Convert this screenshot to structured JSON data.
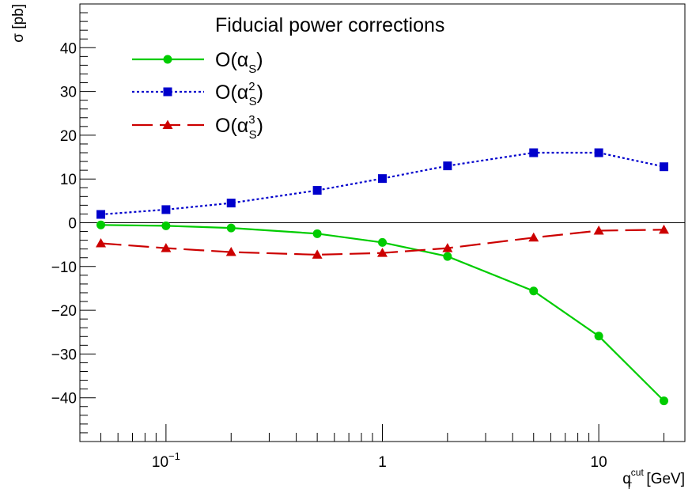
{
  "chart_data": {
    "type": "line",
    "title": "",
    "ylabel": "σ [pb]",
    "xlabel": {
      "main": "q",
      "sup": "cut",
      "sub": "T",
      "unit": " [GeV]"
    },
    "xscale": "log",
    "xlim": [
      0.04,
      25
    ],
    "ylim": [
      -50,
      50
    ],
    "grid": false,
    "legend": {
      "title": "Fiducial power corrections",
      "placement": "top-center"
    },
    "x_ticks": [
      {
        "value": 0.1,
        "base": "10",
        "exp": "−1"
      },
      {
        "value": 1,
        "base": "1",
        "exp": ""
      },
      {
        "value": 10,
        "base": "10",
        "exp": ""
      }
    ],
    "y_ticks": [
      {
        "value": 40,
        "label": "40"
      },
      {
        "value": 30,
        "label": "30"
      },
      {
        "value": 20,
        "label": "20"
      },
      {
        "value": 10,
        "label": "10"
      },
      {
        "value": 0,
        "label": "0"
      },
      {
        "value": -10,
        "label": "−10"
      },
      {
        "value": -20,
        "label": "−20"
      },
      {
        "value": -30,
        "label": "−30"
      },
      {
        "value": -40,
        "label": "−40"
      }
    ],
    "x": [
      0.05,
      0.1,
      0.2,
      0.5,
      1,
      2,
      5,
      10,
      20
    ],
    "series": [
      {
        "label": {
          "pre": "O(α",
          "sub": "S",
          "sup": "",
          "post": ")"
        },
        "color": "#00cc00",
        "dash": "solid",
        "marker": "circle",
        "values": [
          -0.5,
          -0.7,
          -1.2,
          -2.5,
          -4.5,
          -7.7,
          -15.6,
          -25.9,
          -40.7
        ]
      },
      {
        "label": {
          "pre": "O(α",
          "sub": "S",
          "sup": "2",
          "post": ")"
        },
        "color": "#0000cc",
        "dash": "dotted",
        "marker": "square",
        "values": [
          1.9,
          3.0,
          4.5,
          7.4,
          10.1,
          13.0,
          16.0,
          16.0,
          12.8
        ]
      },
      {
        "label": {
          "pre": "O(α",
          "sub": "S",
          "sup": "3",
          "post": ")"
        },
        "color": "#cc0000",
        "dash": "longdash",
        "marker": "triangle",
        "values": [
          -4.7,
          -5.8,
          -6.7,
          -7.3,
          -6.9,
          -5.8,
          -3.4,
          -1.8,
          -1.6
        ]
      }
    ]
  }
}
